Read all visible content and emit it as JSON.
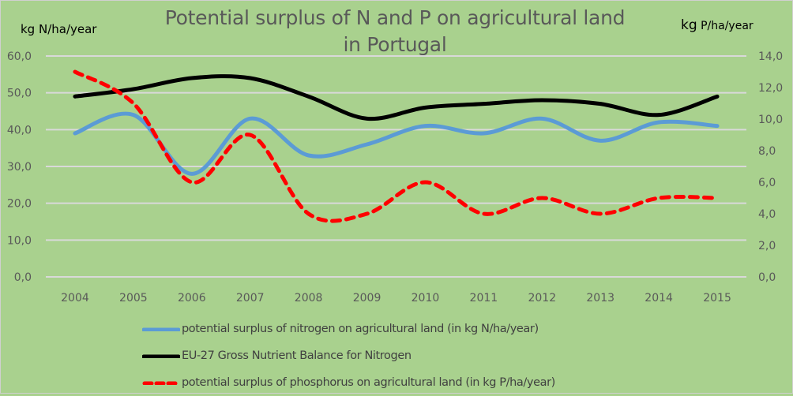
{
  "chart_data": {
    "type": "line",
    "title": "Potential surplus of N and P on agricultural land in Portugal",
    "title_lines": [
      "Potential surplus of N and P on agricultural land",
      "in Portugal"
    ],
    "ylabel_left": "kg N/ha/year",
    "ylabel_right_kg": "kg",
    "ylabel_right_unit": " P/ha/year",
    "x": [
      "2004",
      "2005",
      "2006",
      "2007",
      "2008",
      "2009",
      "2010",
      "2011",
      "2012",
      "2013",
      "2014",
      "2015"
    ],
    "ylim_left": [
      0,
      60
    ],
    "ylim_right": [
      0,
      14
    ],
    "yticks_left": [
      "0,0",
      "10,0",
      "20,0",
      "30,0",
      "40,0",
      "50,0",
      "60,0"
    ],
    "yticks_right": [
      "0,0",
      "2,0",
      "4,0",
      "6,0",
      "8,0",
      "10,0",
      "12,0",
      "14,0"
    ],
    "grid": true,
    "legend_position": "bottom",
    "series": [
      {
        "name": "potential surplus of nitrogen on agricultural land (in kg N/ha/year)",
        "axis": "left",
        "color": "#5b9bd5",
        "style": "solid",
        "values": [
          39,
          44,
          28,
          43,
          33,
          36,
          41,
          39,
          43,
          37,
          42,
          41
        ]
      },
      {
        "name": "EU-27 Gross Nutrient Balance for Nitrogen",
        "axis": "left",
        "color": "#000000",
        "style": "solid",
        "values": [
          49,
          51,
          54,
          54,
          49,
          43,
          46,
          47,
          48,
          47,
          44,
          49
        ]
      },
      {
        "name": "potential surplus of phosphorus on agricultural land (in kg P/ha/year)",
        "axis": "right",
        "color": "#ff0000",
        "style": "dashed",
        "values": [
          13,
          11,
          6,
          9,
          4,
          4,
          6,
          4,
          5,
          4,
          5,
          5
        ]
      }
    ]
  },
  "colors": {
    "background": "#a9d18e",
    "gridline": "#d9d9d9",
    "tick_text": "#595959"
  }
}
